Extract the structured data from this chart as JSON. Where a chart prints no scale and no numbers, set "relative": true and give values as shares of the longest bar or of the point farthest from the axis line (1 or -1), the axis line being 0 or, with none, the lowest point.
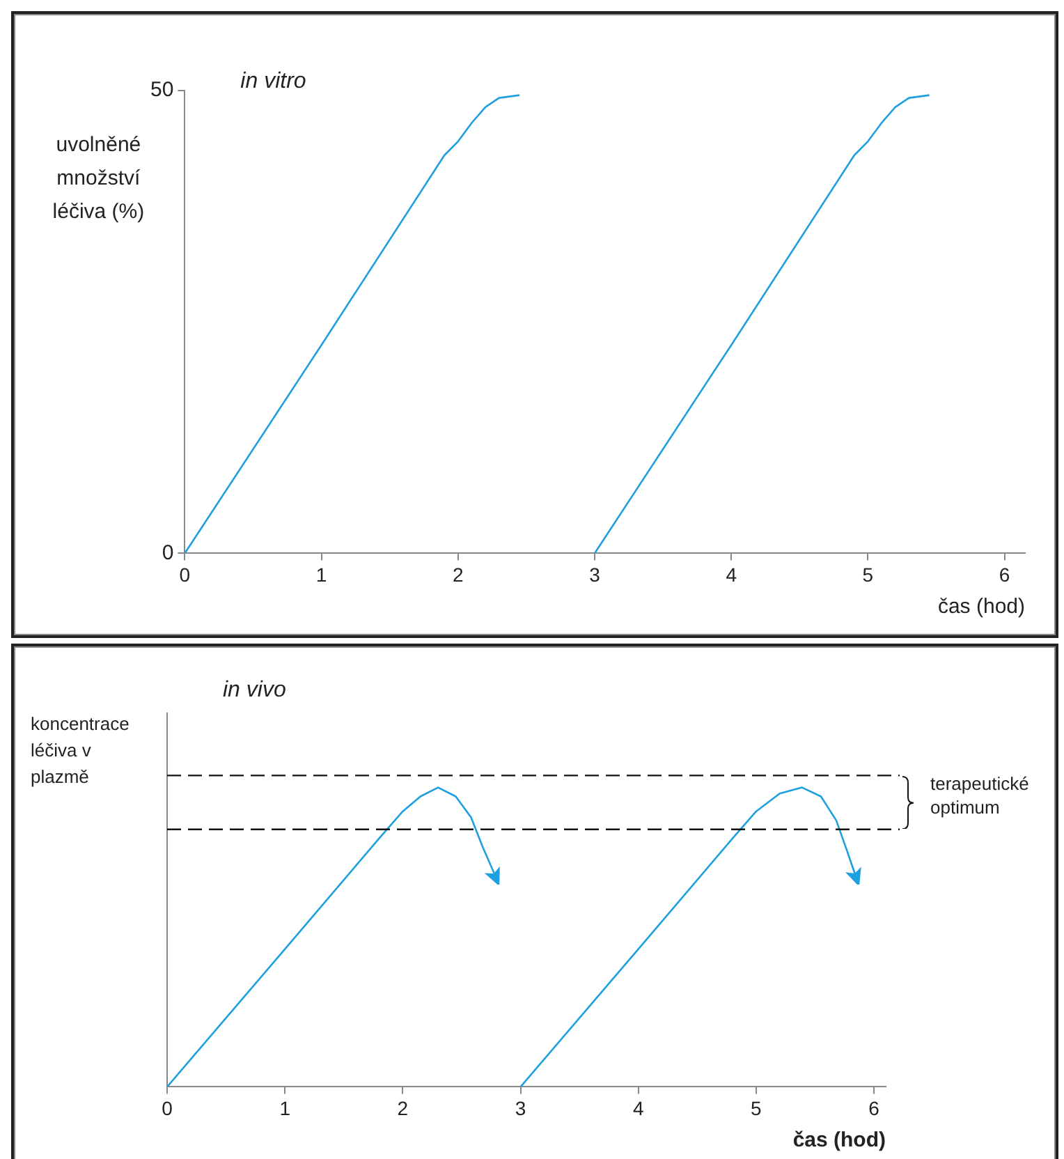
{
  "chart_data": [
    {
      "type": "line",
      "title": "in vitro",
      "xlabel": "čas (hod)",
      "ylabel": "uvolněné množství léčiva (%)",
      "xlim": [
        0,
        6.15
      ],
      "ylim": [
        0,
        50
      ],
      "xticks": [
        0,
        1,
        2,
        3,
        4,
        5,
        6
      ],
      "yticks": [
        0,
        50
      ],
      "grid": false,
      "legend": false,
      "marker": "none",
      "line_style": "solid",
      "series": [
        {
          "color": "#1e9fe0",
          "x": [
            0,
            1,
            1.9,
            2.0,
            2.1,
            2.2,
            2.3,
            2.45
          ],
          "values": [
            0,
            22.5,
            43,
            44.5,
            46.5,
            48.2,
            49.2,
            49.5
          ]
        },
        {
          "color": "#1e9fe0",
          "x": [
            3,
            4,
            4.9,
            5.0,
            5.1,
            5.2,
            5.3,
            5.45
          ],
          "values": [
            0,
            22.5,
            43,
            44.5,
            46.5,
            48.2,
            49.2,
            49.5
          ]
        }
      ]
    },
    {
      "type": "line",
      "title": "in vivo",
      "xlabel": "čas (hod)",
      "ylabel": "koncentrace léčiva v plazmě",
      "xlim": [
        0,
        6.1
      ],
      "xticks": [
        0,
        1,
        2,
        3,
        4,
        5,
        6
      ],
      "relative": true,
      "grid": false,
      "legend": false,
      "marker": "none",
      "line_style": "solid",
      "ref_lines": [
        {
          "axis": "y",
          "value": 1.04,
          "line_style": "dashed",
          "color": "#111111"
        },
        {
          "axis": "y",
          "value": 0.86,
          "line_style": "dashed",
          "color": "#111111"
        }
      ],
      "annotations": [
        "terapeutické optimum"
      ],
      "series": [
        {
          "color": "#1e9fe0",
          "x": [
            0,
            1,
            1.8,
            2.0,
            2.15,
            2.3,
            2.45,
            2.58,
            2.68,
            2.78
          ],
          "values": [
            0,
            0.46,
            0.83,
            0.92,
            0.97,
            1,
            0.97,
            0.9,
            0.8,
            0.71
          ]
        },
        {
          "color": "#1e9fe0",
          "x": [
            3,
            4,
            4.8,
            5.0,
            5.2,
            5.39,
            5.55,
            5.68,
            5.77,
            5.84
          ],
          "values": [
            0,
            0.46,
            0.83,
            0.92,
            0.98,
            1,
            0.97,
            0.89,
            0.79,
            0.71
          ]
        }
      ]
    }
  ]
}
